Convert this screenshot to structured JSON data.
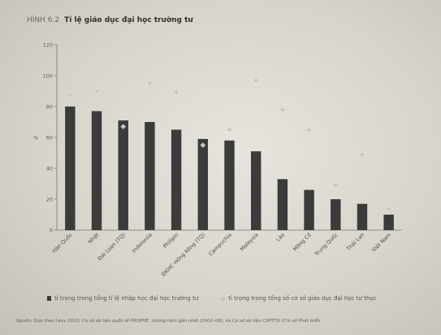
{
  "figure": {
    "label": "HÌNH 6.2",
    "title": "Tỉ lệ giáo dục đại học trường tư"
  },
  "chart_data": {
    "type": "bar",
    "categories": [
      "Hàn Quốc",
      "Nhật",
      "Đài Loan (TQ)",
      "Indonesia",
      "Philipin",
      "ĐKHC Hồng Kông (TQ)",
      "Campuchia",
      "Malaysia",
      "Lào",
      "Mông Cổ",
      "Trung Quốc",
      "Thái Lan",
      "Việt Nam"
    ],
    "series": [
      {
        "name": "tỉ trọng trong tổng tỉ lệ nhập học đại học trường tư",
        "kind": "bar",
        "color": "#3b3b39",
        "values": [
          80,
          77,
          71,
          70,
          65,
          59,
          58,
          51,
          33,
          26,
          20,
          17,
          10
        ]
      },
      {
        "name": "tỉ trọng trong tổng số cơ sở giáo dục đại học tư thục",
        "kind": "marker",
        "color": "#c6c4bd",
        "values": [
          87,
          90,
          67,
          95,
          89,
          55,
          65,
          97,
          78,
          65,
          29,
          49,
          14
        ]
      }
    ],
    "ylabel": "%",
    "ylim": [
      0,
      120
    ],
    "yticks": [
      0,
      20,
      40,
      60,
      80,
      100,
      120
    ],
    "grid": false,
    "legend_position": "bottom"
  },
  "source_note": "Nguồn: Dựa theo Levy 2010; Cơ sở dữ liệu quốc tế PROPHE, những năm gần nhất (2002–08); và Cơ sở dữ liệu CSPTTG (Chỉ số Phát triển"
}
